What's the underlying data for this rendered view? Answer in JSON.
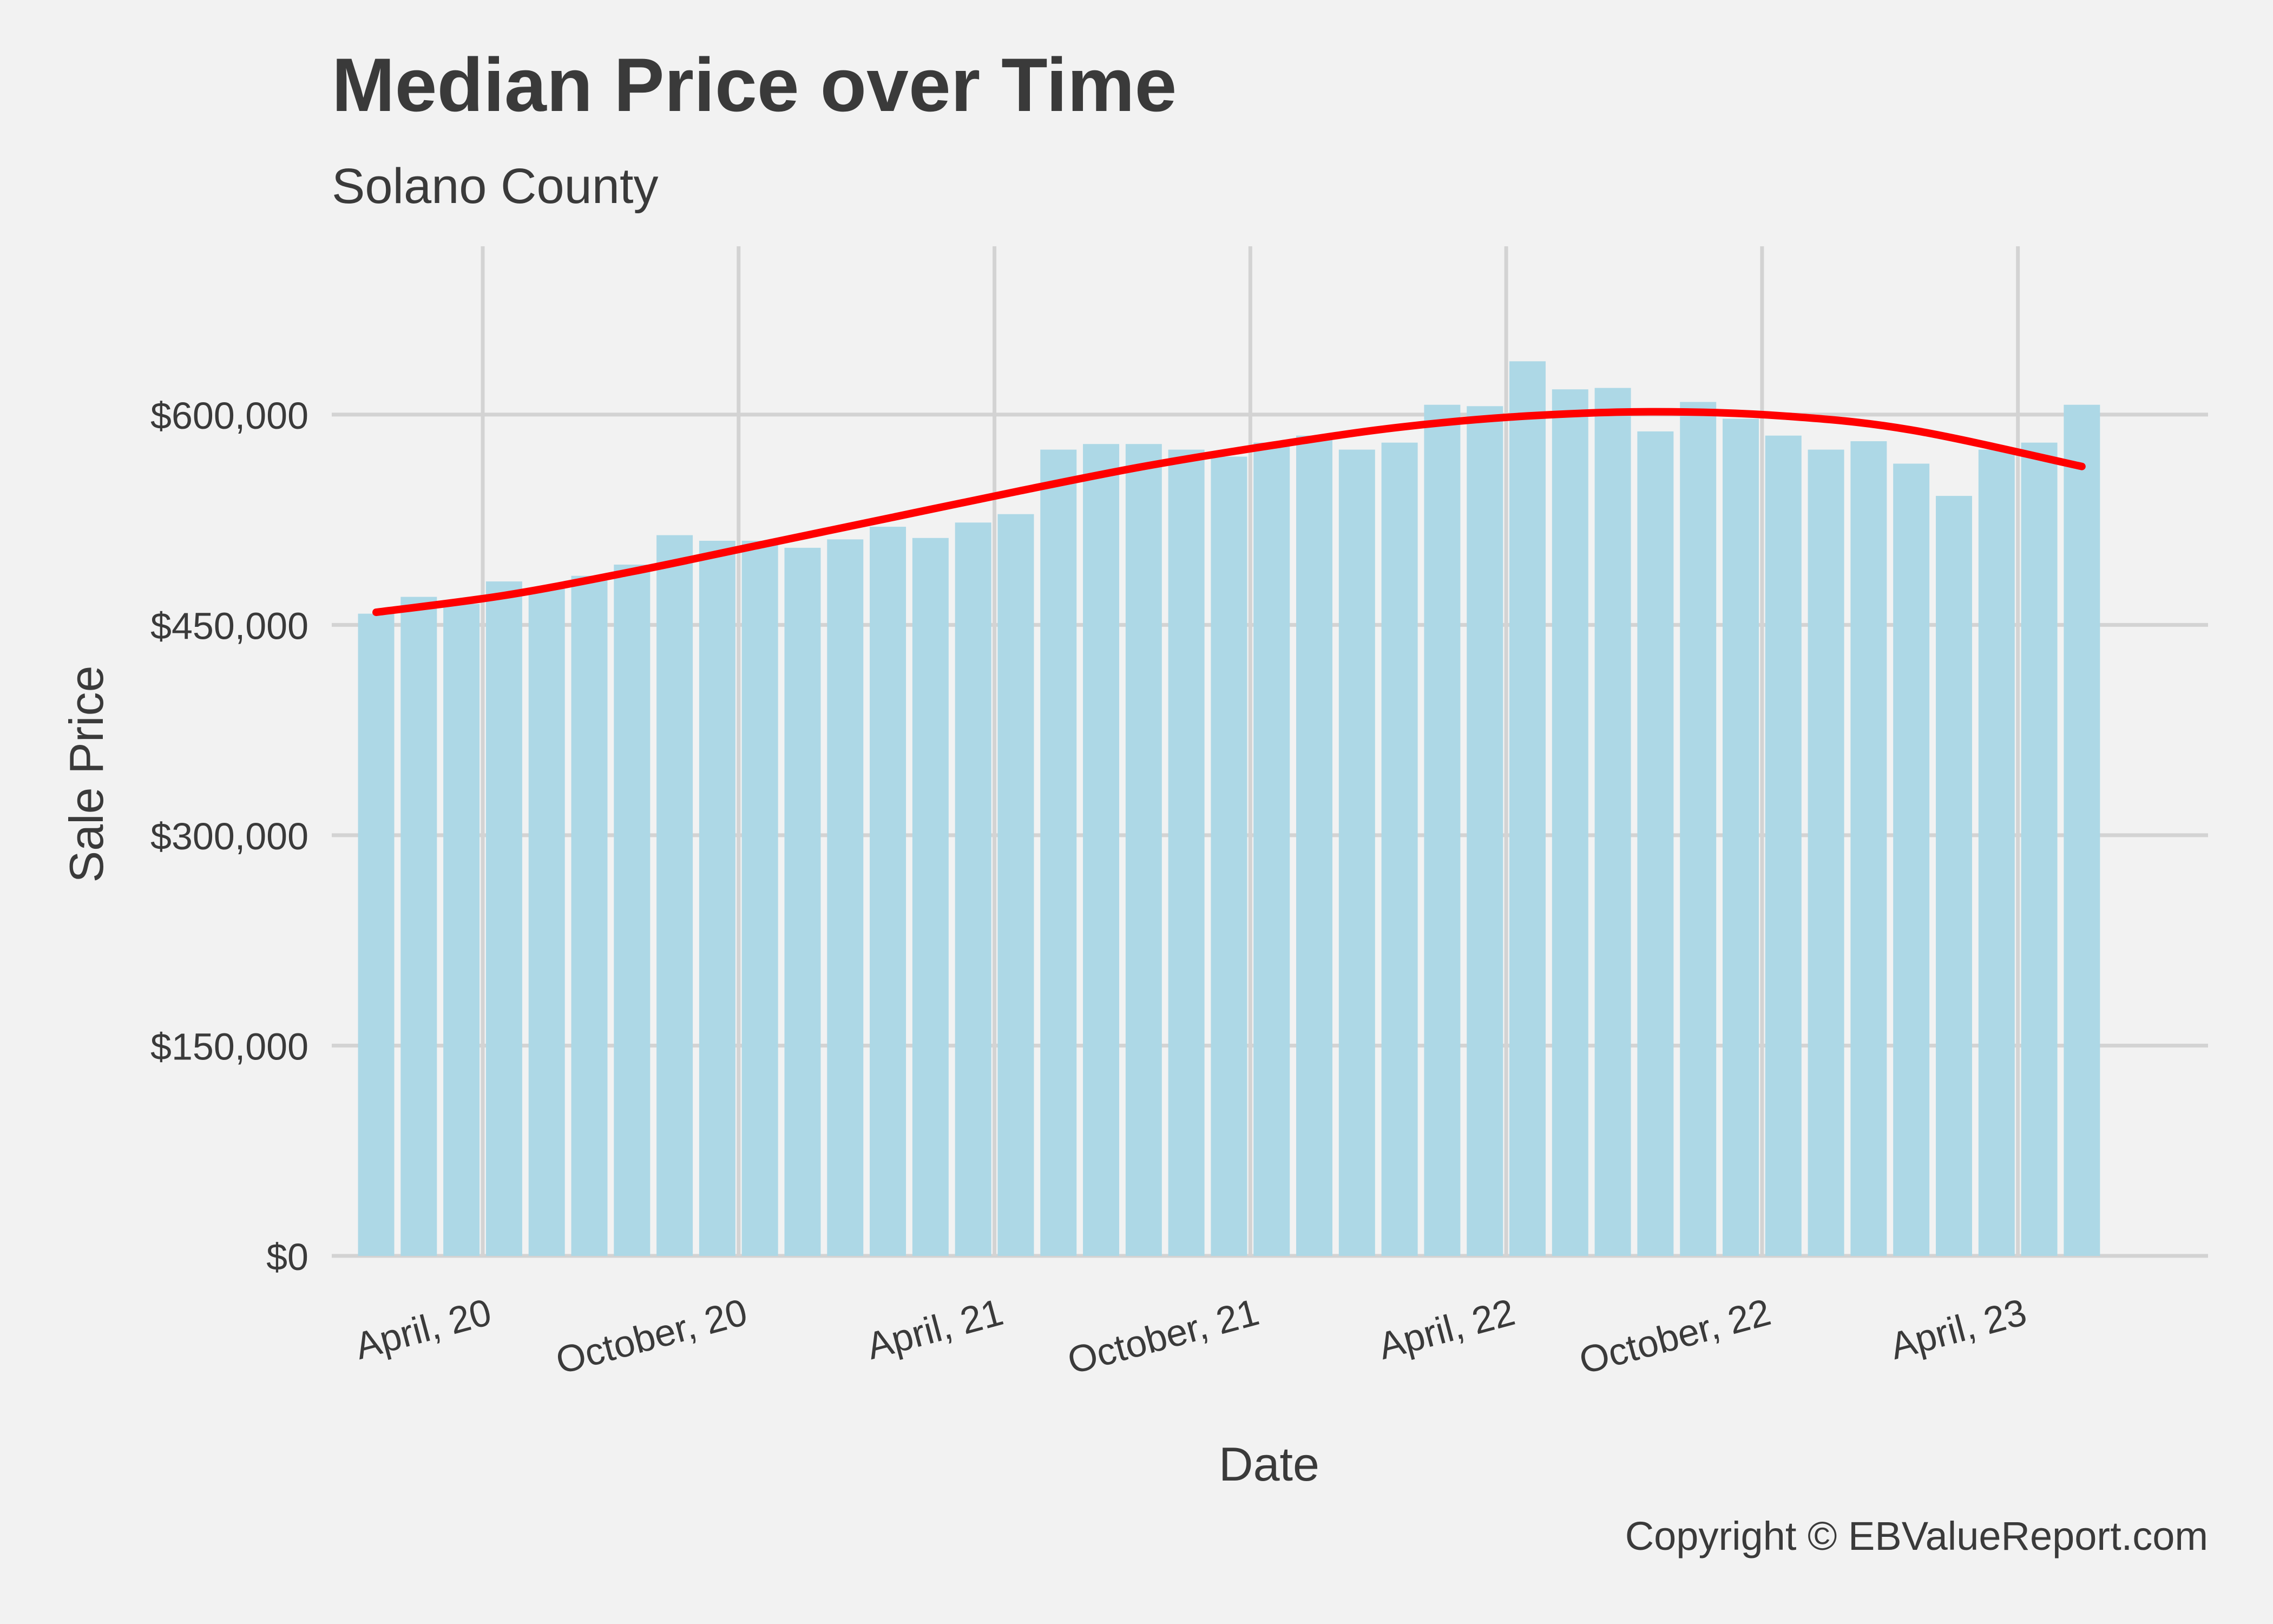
{
  "chart_data": {
    "type": "bar",
    "title": "Median Price over Time",
    "subtitle": "Solano County",
    "xlabel": "Date",
    "ylabel": "Sale Price",
    "caption": "Copyright  © EBValueReport.com",
    "ylim": [
      0,
      720000
    ],
    "xlim": [
      "2019-12-15",
      "2023-08-15"
    ],
    "y_ticks": [
      0,
      150000,
      300000,
      450000,
      600000
    ],
    "y_tick_labels": [
      "$0",
      "$150,000",
      "$300,000",
      "$450,000",
      "$600,000"
    ],
    "x_ticks": [
      "2020-04-01",
      "2020-10-01",
      "2021-04-01",
      "2021-10-01",
      "2022-04-01",
      "2022-10-01",
      "2023-04-01"
    ],
    "x_tick_labels": [
      "April, 20",
      "October, 20",
      "April, 21",
      "October, 21",
      "April, 22",
      "October, 22",
      "April, 23"
    ],
    "grid": true,
    "legend": "none",
    "colors": {
      "bars": "#add8e6",
      "trend": "#ff0000",
      "grid": "#d3d3d3",
      "background": "#f2f2f2",
      "text": "#3a3a3a"
    },
    "dates": [
      "2020-01",
      "2020-02",
      "2020-03",
      "2020-04",
      "2020-05",
      "2020-06",
      "2020-07",
      "2020-08",
      "2020-09",
      "2020-10",
      "2020-11",
      "2020-12",
      "2021-01",
      "2021-02",
      "2021-03",
      "2021-04",
      "2021-05",
      "2021-06",
      "2021-07",
      "2021-08",
      "2021-09",
      "2021-10",
      "2021-11",
      "2021-12",
      "2022-01",
      "2022-02",
      "2022-03",
      "2022-04",
      "2022-05",
      "2022-06",
      "2022-07",
      "2022-08",
      "2022-09",
      "2022-10",
      "2022-11",
      "2022-12",
      "2023-01",
      "2023-02",
      "2023-03",
      "2023-04",
      "2023-05"
    ],
    "values": [
      458000,
      470000,
      465000,
      481000,
      476000,
      485000,
      493000,
      514000,
      510000,
      510000,
      505000,
      511000,
      520000,
      512000,
      523000,
      529000,
      575000,
      579000,
      579000,
      575000,
      570000,
      580000,
      585000,
      575000,
      580000,
      607000,
      606000,
      638000,
      618000,
      619000,
      588000,
      609000,
      597000,
      585000,
      575000,
      581000,
      565000,
      542000,
      575000,
      580000,
      607000
    ],
    "trend_line": {
      "dates": [
        "2020-01",
        "2020-04",
        "2020-07",
        "2020-10",
        "2021-01",
        "2021-04",
        "2021-07",
        "2021-10",
        "2022-01",
        "2022-04",
        "2022-07",
        "2022-10",
        "2023-01",
        "2023-05"
      ],
      "values": [
        459000,
        471000,
        488000,
        507000,
        526000,
        545000,
        563000,
        578000,
        591000,
        599000,
        602000,
        599000,
        589000,
        563000
      ]
    }
  }
}
